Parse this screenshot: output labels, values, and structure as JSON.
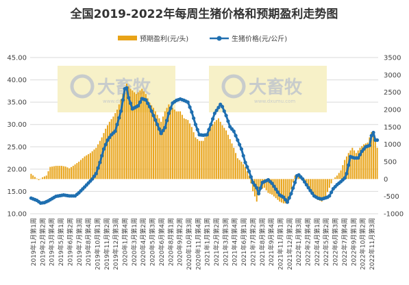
{
  "chart_data": {
    "type": "bar+line",
    "title": "全国2019-2022年每周生猪价格和预期盈利走势图",
    "legend": [
      "预期盈利(元/头)",
      "生猪价格(元/公斤)"
    ],
    "legend_position": "top-center",
    "colors": {
      "bars": "#E8A317",
      "line": "#1F6FB0",
      "watermark_box": "#F7F1C8"
    },
    "watermark": {
      "text": "大畜牧",
      "sub": "www.dxumu.com"
    },
    "y_left": {
      "min": 10,
      "max": 45,
      "ticks": [
        "10.00",
        "15.00",
        "20.00",
        "25.00",
        "30.00",
        "35.00",
        "40.00",
        "45.00"
      ]
    },
    "y_right": {
      "min": -1000,
      "max": 3500,
      "ticks": [
        "-1000",
        "-500",
        "0",
        "500",
        "1000",
        "1500",
        "2000",
        "2500",
        "3000",
        "3500"
      ]
    },
    "x_labels": [
      "2019年1月第1周",
      "2019年2月第2周",
      "2019年3月第4周",
      "2019年5月第1周",
      "2019年6月第2周",
      "2019年7月第3周",
      "2019年8月第4周",
      "2019年10月第1周",
      "2019年11月第2周",
      "2019年12月第3周",
      "2020年1月第4周",
      "2020年3月第1周",
      "2020年4月第2周",
      "2020年5月第3周",
      "2020年6月第4周",
      "2020年8月第1周",
      "2020年9月第2周",
      "2020年10月第3周",
      "2020年11月第4周",
      "2021年1月第1周",
      "2021年2月第2周",
      "2021年3月第3周",
      "2021年4月第4周",
      "2021年6月第1周",
      "2021年7月第2周",
      "2021年8月第3周",
      "2021年9月第4周",
      "2021年11月第1周",
      "2021年12月第2周",
      "2022年1月第3周",
      "2022年2月第4周",
      "2022年4月第1周",
      "2022年5月第2周",
      "2022年6月第3周",
      "2022年7月第4周",
      "2022年9月第1周",
      "2022年10月第2周",
      "2022年11月第3周"
    ],
    "price_keypoints": [
      [
        0,
        13.5
      ],
      [
        3,
        13
      ],
      [
        5,
        12.4
      ],
      [
        7,
        12.5
      ],
      [
        9,
        12.9
      ],
      [
        13,
        13.9
      ],
      [
        17,
        14.2
      ],
      [
        20,
        14
      ],
      [
        23,
        14
      ],
      [
        25,
        14.7
      ],
      [
        28,
        16
      ],
      [
        32,
        17.8
      ],
      [
        34,
        19
      ],
      [
        36,
        21.5
      ],
      [
        38,
        24.5
      ],
      [
        40,
        26.5
      ],
      [
        42,
        27.7
      ],
      [
        44,
        28.5
      ],
      [
        45,
        30
      ],
      [
        47,
        33
      ],
      [
        49,
        38
      ],
      [
        50,
        38.2
      ],
      [
        51,
        36
      ],
      [
        53,
        33.5
      ],
      [
        56,
        34.2
      ],
      [
        58,
        35.8
      ],
      [
        60,
        35.5
      ],
      [
        62,
        34
      ],
      [
        64,
        32
      ],
      [
        66,
        30
      ],
      [
        68,
        28
      ],
      [
        70,
        29.3
      ],
      [
        72,
        32.5
      ],
      [
        74,
        34.8
      ],
      [
        76,
        35.4
      ],
      [
        78,
        35.7
      ],
      [
        80,
        35.4
      ],
      [
        82,
        35
      ],
      [
        84,
        32.8
      ],
      [
        86,
        30
      ],
      [
        88,
        27.7
      ],
      [
        90,
        27.6
      ],
      [
        92,
        27.7
      ],
      [
        94,
        30
      ],
      [
        96,
        32.5
      ],
      [
        98,
        33.8
      ],
      [
        99,
        34.5
      ],
      [
        100,
        34
      ],
      [
        102,
        32
      ],
      [
        104,
        29.5
      ],
      [
        106,
        28.5
      ],
      [
        108,
        26.5
      ],
      [
        110,
        24.5
      ],
      [
        112,
        21.5
      ],
      [
        114,
        19.5
      ],
      [
        116,
        17
      ],
      [
        118,
        15.8
      ],
      [
        119,
        14.5
      ],
      [
        121,
        17
      ],
      [
        124,
        17.6
      ],
      [
        126,
        16.8
      ],
      [
        128,
        15.5
      ],
      [
        130,
        14.2
      ],
      [
        132,
        13.7
      ],
      [
        134,
        12.6
      ],
      [
        136,
        14.5
      ],
      [
        138,
        17
      ],
      [
        139,
        18.5
      ],
      [
        140,
        18.7
      ],
      [
        142,
        17.8
      ],
      [
        144,
        16.5
      ],
      [
        146,
        15.2
      ],
      [
        148,
        14
      ],
      [
        150,
        13.5
      ],
      [
        152,
        13.3
      ],
      [
        155,
        13.7
      ],
      [
        156,
        14
      ],
      [
        158,
        15.6
      ],
      [
        160,
        16.5
      ],
      [
        162,
        17.2
      ],
      [
        164,
        18
      ],
      [
        165,
        19
      ],
      [
        167,
        22.8
      ],
      [
        169,
        22.5
      ],
      [
        171,
        22.5
      ],
      [
        173,
        24
      ],
      [
        175,
        25
      ],
      [
        177,
        25.3
      ],
      [
        178,
        27.5
      ],
      [
        179,
        28.2
      ],
      [
        180,
        26.5
      ],
      [
        181,
        26.5
      ]
    ],
    "profit_keypoints": [
      [
        0,
        150
      ],
      [
        2,
        60
      ],
      [
        4,
        -30
      ],
      [
        6,
        50
      ],
      [
        8,
        100
      ],
      [
        10,
        350
      ],
      [
        13,
        380
      ],
      [
        16,
        380
      ],
      [
        18,
        360
      ],
      [
        20,
        310
      ],
      [
        22,
        380
      ],
      [
        25,
        500
      ],
      [
        28,
        650
      ],
      [
        31,
        750
      ],
      [
        34,
        900
      ],
      [
        37,
        1200
      ],
      [
        39,
        1450
      ],
      [
        41,
        1650
      ],
      [
        43,
        1800
      ],
      [
        45,
        2000
      ],
      [
        48,
        2450
      ],
      [
        50,
        2750
      ],
      [
        52,
        2600
      ],
      [
        55,
        2450
      ],
      [
        58,
        2600
      ],
      [
        60,
        2450
      ],
      [
        62,
        2200
      ],
      [
        64,
        2050
      ],
      [
        66,
        1850
      ],
      [
        68,
        1650
      ],
      [
        70,
        1950
      ],
      [
        72,
        2150
      ],
      [
        74,
        2050
      ],
      [
        76,
        1950
      ],
      [
        78,
        1950
      ],
      [
        80,
        1750
      ],
      [
        82,
        1700
      ],
      [
        84,
        1500
      ],
      [
        86,
        1200
      ],
      [
        88,
        1100
      ],
      [
        90,
        1100
      ],
      [
        92,
        1300
      ],
      [
        94,
        1500
      ],
      [
        96,
        1650
      ],
      [
        98,
        1750
      ],
      [
        100,
        1550
      ],
      [
        102,
        1400
      ],
      [
        104,
        1150
      ],
      [
        106,
        900
      ],
      [
        108,
        600
      ],
      [
        110,
        500
      ],
      [
        112,
        350
      ],
      [
        114,
        100
      ],
      [
        116,
        -350
      ],
      [
        118,
        -650
      ],
      [
        120,
        -300
      ],
      [
        122,
        -250
      ],
      [
        124,
        -400
      ],
      [
        126,
        -450
      ],
      [
        128,
        -550
      ],
      [
        130,
        -650
      ],
      [
        132,
        -700
      ],
      [
        134,
        -700
      ],
      [
        136,
        -300
      ],
      [
        138,
        100
      ],
      [
        140,
        150
      ],
      [
        142,
        0
      ],
      [
        144,
        -200
      ],
      [
        146,
        -300
      ],
      [
        148,
        -450
      ],
      [
        150,
        -600
      ],
      [
        152,
        -650
      ],
      [
        154,
        -500
      ],
      [
        156,
        -250
      ],
      [
        158,
        0
      ],
      [
        160,
        100
      ],
      [
        162,
        250
      ],
      [
        164,
        550
      ],
      [
        166,
        750
      ],
      [
        168,
        900
      ],
      [
        170,
        750
      ],
      [
        172,
        900
      ],
      [
        174,
        1000
      ],
      [
        176,
        1050
      ],
      [
        178,
        1350
      ],
      [
        180,
        1150
      ],
      [
        181,
        900
      ]
    ]
  }
}
